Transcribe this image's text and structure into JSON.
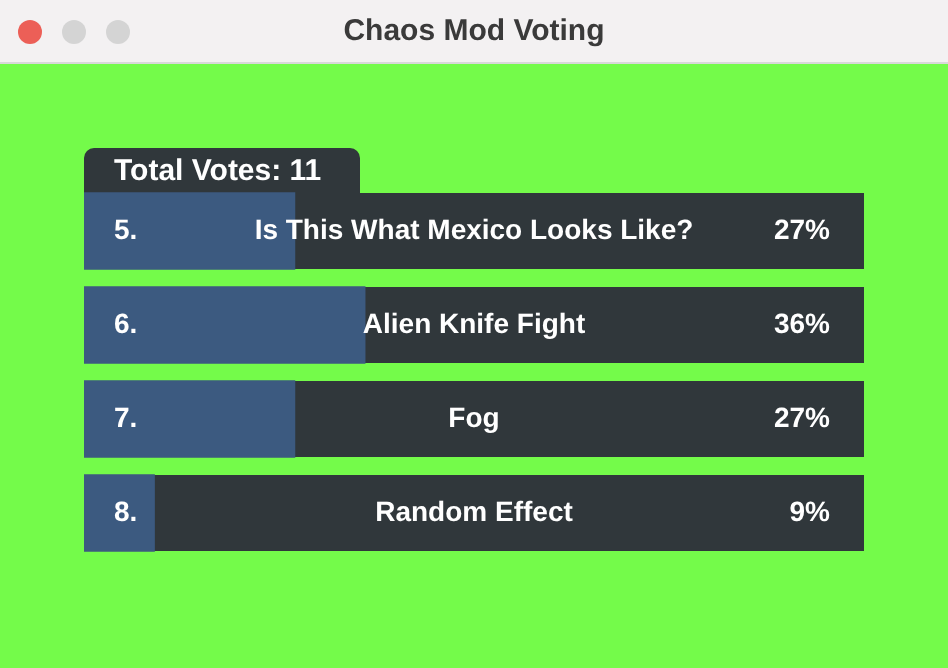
{
  "chart_data": {
    "type": "bar",
    "orientation": "horizontal",
    "title": "Chaos Mod Voting",
    "subtitle": "Total Votes: 11",
    "categories": [
      "Is This What Mexico Looks Like?",
      "Alien Knife Fight",
      "Fog",
      "Random Effect"
    ],
    "values": [
      27,
      36,
      27,
      9
    ],
    "color": "#3c5a80",
    "value_labels": [
      "27%",
      "36%",
      "27%",
      "9%"
    ],
    "annotations": [
      "5.",
      "6.",
      "7.",
      "8."
    ],
    "xlim": [
      0,
      100
    ],
    "tick_labels": false,
    "legend": false
  }
}
